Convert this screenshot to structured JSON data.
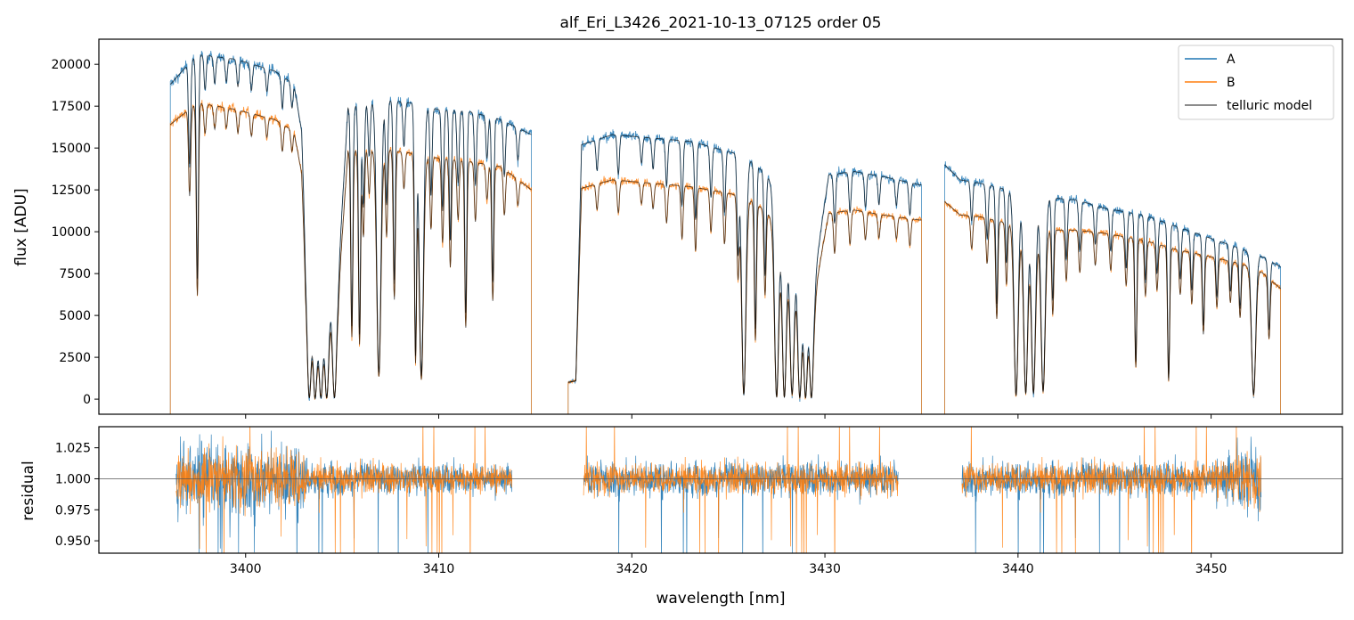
{
  "figure": {
    "title": "alf_Eri_L3426_2021-10-13_07125  order 05"
  },
  "chart_data": [
    {
      "type": "line",
      "panel": "flux",
      "ylabel": "flux [ADU]",
      "xlabel": "",
      "xlim": [
        3392.4,
        3456.8
      ],
      "ylim": [
        -900,
        21500
      ],
      "yticks": [
        0,
        2500,
        5000,
        7500,
        10000,
        12500,
        15000,
        17500,
        20000
      ],
      "xticks": [
        3400,
        3410,
        3420,
        3430,
        3440,
        3450
      ],
      "show_xtick_labels": false,
      "legend": {
        "placement": "top-right",
        "entries": [
          "A",
          "B",
          "telluric model"
        ]
      },
      "segments": [
        {
          "x_range": [
            3396.1,
            3414.8
          ],
          "continuum_A": [
            [
              3396.1,
              18800
            ],
            [
              3397.5,
              20600
            ],
            [
              3399.5,
              20300
            ],
            [
              3401.5,
              19600
            ],
            [
              3402.5,
              18800
            ],
            [
              3402.9,
              16000
            ],
            [
              3403.1,
              9000
            ],
            [
              3403.6,
              6000
            ],
            [
              3404.8,
              7500
            ],
            [
              3405.3,
              17400
            ],
            [
              3407.0,
              17900
            ],
            [
              3408.5,
              17700
            ],
            [
              3410.0,
              17300
            ],
            [
              3411.5,
              17200
            ],
            [
              3413.2,
              16700
            ],
            [
              3414.8,
              15800
            ]
          ],
          "continuum_B": [
            [
              3396.1,
              16400
            ],
            [
              3397.5,
              17700
            ],
            [
              3399.5,
              17300
            ],
            [
              3401.5,
              16700
            ],
            [
              3402.5,
              16000
            ],
            [
              3402.9,
              13500
            ],
            [
              3403.1,
              7600
            ],
            [
              3403.6,
              5200
            ],
            [
              3404.8,
              6400
            ],
            [
              3405.3,
              14800
            ],
            [
              3407.0,
              15000
            ],
            [
              3408.5,
              14700
            ],
            [
              3410.0,
              14400
            ],
            [
              3411.5,
              14200
            ],
            [
              3413.2,
              13900
            ],
            [
              3414.8,
              12500
            ]
          ],
          "absorption_lines": [
            [
              3397.1,
              0.3
            ],
            [
              3397.5,
              0.65
            ],
            [
              3397.9,
              0.1
            ],
            [
              3398.4,
              0.08
            ],
            [
              3399.0,
              0.07
            ],
            [
              3399.6,
              0.08
            ],
            [
              3400.3,
              0.08
            ],
            [
              3401.1,
              0.07
            ],
            [
              3401.9,
              0.1
            ],
            [
              3402.4,
              0.08
            ],
            [
              3403.3,
              0.99
            ],
            [
              3403.6,
              0.99
            ],
            [
              3403.9,
              0.99
            ],
            [
              3404.2,
              0.99
            ],
            [
              3404.6,
              0.99
            ],
            [
              3405.5,
              0.75
            ],
            [
              3405.9,
              0.78
            ],
            [
              3406.1,
              0.35
            ],
            [
              3406.4,
              0.18
            ],
            [
              3406.9,
              0.91
            ],
            [
              3407.3,
              0.35
            ],
            [
              3407.7,
              0.6
            ],
            [
              3408.2,
              0.15
            ],
            [
              3408.8,
              0.85
            ],
            [
              3409.1,
              0.92
            ],
            [
              3409.6,
              0.3
            ],
            [
              3410.2,
              0.35
            ],
            [
              3410.6,
              0.45
            ],
            [
              3411.0,
              0.25
            ],
            [
              3411.4,
              0.7
            ],
            [
              3411.9,
              0.25
            ],
            [
              3412.5,
              0.15
            ],
            [
              3412.8,
              0.58
            ],
            [
              3413.4,
              0.2
            ],
            [
              3414.1,
              0.12
            ]
          ]
        },
        {
          "x_range": [
            3416.7,
            3435.0
          ],
          "continuum_A": [
            [
              3416.7,
              1000
            ],
            [
              3417.1,
              1100
            ],
            [
              3417.4,
              15200
            ],
            [
              3419.0,
              15800
            ],
            [
              3421.0,
              15600
            ],
            [
              3423.0,
              15400
            ],
            [
              3425.0,
              14800
            ],
            [
              3426.0,
              14400
            ],
            [
              3427.0,
              13400
            ],
            [
              3428.5,
              9500
            ],
            [
              3429.5,
              7600
            ],
            [
              3429.9,
              11000
            ],
            [
              3430.2,
              13400
            ],
            [
              3431.5,
              13600
            ],
            [
              3433.0,
              13300
            ],
            [
              3434.9,
              12800
            ]
          ],
          "continuum_B": [
            [
              3416.7,
              1000
            ],
            [
              3417.1,
              1100
            ],
            [
              3417.4,
              12600
            ],
            [
              3419.0,
              13100
            ],
            [
              3421.0,
              12900
            ],
            [
              3423.0,
              12700
            ],
            [
              3425.0,
              12300
            ],
            [
              3426.0,
              12000
            ],
            [
              3427.0,
              11200
            ],
            [
              3428.5,
              8000
            ],
            [
              3429.5,
              6400
            ],
            [
              3429.9,
              9200
            ],
            [
              3430.2,
              11100
            ],
            [
              3431.5,
              11300
            ],
            [
              3433.0,
              11000
            ],
            [
              3434.9,
              10700
            ]
          ],
          "absorption_lines": [
            [
              3418.2,
              0.12
            ],
            [
              3419.3,
              0.15
            ],
            [
              3420.5,
              0.1
            ],
            [
              3421.1,
              0.12
            ],
            [
              3421.8,
              0.18
            ],
            [
              3422.6,
              0.25
            ],
            [
              3423.3,
              0.3
            ],
            [
              3424.1,
              0.2
            ],
            [
              3424.8,
              0.25
            ],
            [
              3425.5,
              0.4
            ],
            [
              3425.8,
              0.98
            ],
            [
              3426.4,
              0.7
            ],
            [
              3426.9,
              0.45
            ],
            [
              3427.5,
              0.99
            ],
            [
              3427.9,
              0.99
            ],
            [
              3428.3,
              0.97
            ],
            [
              3428.7,
              0.99
            ],
            [
              3429.0,
              0.99
            ],
            [
              3429.3,
              0.99
            ],
            [
              3430.5,
              0.22
            ],
            [
              3431.3,
              0.18
            ],
            [
              3432.1,
              0.15
            ],
            [
              3432.8,
              0.13
            ],
            [
              3433.7,
              0.12
            ],
            [
              3434.4,
              0.15
            ]
          ]
        },
        {
          "x_range": [
            3436.2,
            3453.6
          ],
          "continuum_A": [
            [
              3436.2,
              14000
            ],
            [
              3437.0,
              13100
            ],
            [
              3438.0,
              12900
            ],
            [
              3439.5,
              12500
            ],
            [
              3441.0,
              12100
            ],
            [
              3443.0,
              11900
            ],
            [
              3444.5,
              11400
            ],
            [
              3446.5,
              11000
            ],
            [
              3448.0,
              10400
            ],
            [
              3450.0,
              9600
            ],
            [
              3451.5,
              9000
            ],
            [
              3452.5,
              8600
            ],
            [
              3453.6,
              7900
            ]
          ],
          "continuum_B": [
            [
              3436.2,
              11800
            ],
            [
              3437.0,
              11000
            ],
            [
              3438.0,
              10900
            ],
            [
              3439.5,
              10500
            ],
            [
              3441.0,
              10100
            ],
            [
              3443.0,
              10100
            ],
            [
              3444.5,
              9900
            ],
            [
              3446.5,
              9500
            ],
            [
              3448.0,
              9000
            ],
            [
              3450.0,
              8500
            ],
            [
              3451.5,
              8100
            ],
            [
              3452.5,
              7700
            ],
            [
              3453.6,
              6600
            ]
          ],
          "absorption_lines": [
            [
              3437.6,
              0.18
            ],
            [
              3438.4,
              0.25
            ],
            [
              3438.9,
              0.55
            ],
            [
              3439.4,
              0.35
            ],
            [
              3439.9,
              0.98
            ],
            [
              3440.4,
              0.97
            ],
            [
              3440.8,
              0.97
            ],
            [
              3441.3,
              0.96
            ],
            [
              3441.8,
              0.5
            ],
            [
              3442.5,
              0.3
            ],
            [
              3443.2,
              0.25
            ],
            [
              3444.0,
              0.2
            ],
            [
              3444.8,
              0.22
            ],
            [
              3445.6,
              0.3
            ],
            [
              3446.1,
              0.8
            ],
            [
              3446.6,
              0.35
            ],
            [
              3447.2,
              0.3
            ],
            [
              3447.8,
              0.88
            ],
            [
              3448.4,
              0.3
            ],
            [
              3449.0,
              0.35
            ],
            [
              3449.6,
              0.55
            ],
            [
              3450.3,
              0.35
            ],
            [
              3451.0,
              0.3
            ],
            [
              3451.5,
              0.4
            ],
            [
              3452.2,
              0.97
            ],
            [
              3453.0,
              0.5
            ]
          ]
        }
      ]
    },
    {
      "type": "line",
      "panel": "residual",
      "ylabel": "residual",
      "xlabel": "wavelength [nm]",
      "xlim": [
        3392.4,
        3456.8
      ],
      "ylim": [
        0.94,
        1.042
      ],
      "yticks": [
        0.95,
        0.975,
        1.0,
        1.025
      ],
      "ytick_labels": [
        "0.950",
        "0.975",
        "1.000",
        "1.025"
      ],
      "xticks": [
        3400,
        3410,
        3420,
        3430,
        3440,
        3450
      ],
      "xtick_labels": [
        "3400",
        "3410",
        "3420",
        "3430",
        "3440",
        "3450"
      ],
      "reference_line": 1.0,
      "segments": [
        {
          "x_range": [
            3396.4,
            3413.8
          ],
          "noise_A": [
            [
              3396.4,
              0.025
            ],
            [
              3403.0,
              0.025
            ],
            [
              3403.2,
              0.012
            ],
            [
              3413.8,
              0.01
            ]
          ],
          "noise_B": [
            [
              3396.4,
              0.022
            ],
            [
              3403.0,
              0.022
            ],
            [
              3403.2,
              0.011
            ],
            [
              3413.8,
              0.009
            ]
          ]
        },
        {
          "x_range": [
            3417.5,
            3433.8
          ],
          "noise_A": [
            [
              3417.5,
              0.012
            ],
            [
              3433.8,
              0.012
            ]
          ],
          "noise_B": [
            [
              3417.5,
              0.011
            ],
            [
              3433.8,
              0.011
            ]
          ]
        },
        {
          "x_range": [
            3437.1,
            3452.6
          ],
          "noise_A": [
            [
              3437.1,
              0.012
            ],
            [
              3450.0,
              0.012
            ],
            [
              3452.6,
              0.03
            ]
          ],
          "noise_B": [
            [
              3437.1,
              0.011
            ],
            [
              3450.0,
              0.011
            ],
            [
              3452.6,
              0.02
            ]
          ]
        }
      ]
    }
  ],
  "colors": {
    "A": "#1f77b4",
    "B": "#ff7f0e",
    "telluric_model": "#000000",
    "reference_line": "#555555"
  }
}
